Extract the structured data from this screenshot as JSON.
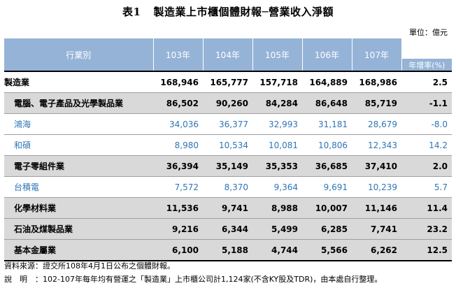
{
  "title": {
    "number": "表1",
    "text": "製造業上市櫃個體財報─營業收入淨額"
  },
  "unit": "單位：億元",
  "table": {
    "header_category": "行業別",
    "years": [
      "103年",
      "104年",
      "105年",
      "106年",
      "107年"
    ],
    "growth_header": "年增率(%)",
    "rows": [
      {
        "name": "製造業",
        "values": [
          "168,946",
          "165,777",
          "157,718",
          "164,889",
          "168,986"
        ],
        "growth": "2.5",
        "style": "top"
      },
      {
        "name": "電腦、電子產品及光學製品業",
        "values": [
          "86,502",
          "90,260",
          "84,284",
          "86,648",
          "85,719"
        ],
        "growth": "-1.1",
        "style": "sub"
      },
      {
        "name": "鴻海",
        "values": [
          "34,036",
          "36,377",
          "32,993",
          "31,181",
          "28,679"
        ],
        "growth": "-8.0",
        "style": "company"
      },
      {
        "name": "和碩",
        "values": [
          "8,980",
          "10,534",
          "10,081",
          "10,806",
          "12,343"
        ],
        "growth": "14.2",
        "style": "company"
      },
      {
        "name": "電子零組件業",
        "values": [
          "36,394",
          "35,149",
          "35,353",
          "36,685",
          "37,410"
        ],
        "growth": "2.0",
        "style": "sub"
      },
      {
        "name": "台積電",
        "values": [
          "7,572",
          "8,370",
          "9,364",
          "9,691",
          "10,239"
        ],
        "growth": "5.7",
        "style": "company"
      },
      {
        "name": "化學材料業",
        "values": [
          "11,536",
          "9,741",
          "8,988",
          "10,007",
          "11,146"
        ],
        "growth": "11.4",
        "style": "sub"
      },
      {
        "name": "石油及煤製品業",
        "values": [
          "9,216",
          "6,344",
          "5,499",
          "6,285",
          "7,741"
        ],
        "growth": "23.2",
        "style": "sub"
      },
      {
        "name": "基本金屬業",
        "values": [
          "6,100",
          "5,188",
          "4,744",
          "5,566",
          "6,262"
        ],
        "growth": "12.5",
        "style": "sub"
      }
    ]
  },
  "notes": {
    "source": "資料來源：證交所108年4月1日公布之個體財報。",
    "desc_label": "說明",
    "desc_text": "：102-107年每年均有營運之「製造業」上市櫃公司計1,124家(不含KY股及TDR)，由本處自行整理。"
  },
  "colors": {
    "header_bg": "#95b3d7",
    "shaded_row": "#d9d9d9",
    "company_text": "#2e75b6"
  }
}
